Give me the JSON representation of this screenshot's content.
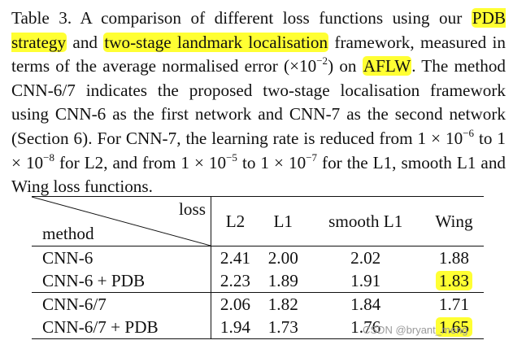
{
  "caption": {
    "p1": "Table 3. A comparison of different loss functions using our ",
    "hl1": "PDB strategy",
    "p2": " and ",
    "hl2": "two-stage landmark localisation",
    "p3": " framework, measured in terms of the average normalised error (×10",
    "exp1": "−2",
    "p4": ") on ",
    "hl3": "AFLW",
    "p5": ". The method CNN-6/7 indicates the proposed two-stage localisation framework using CNN-6 as the first network and CNN-7 as the second network (Section 6). For CNN-7, the learning rate is reduced from 1 × 10",
    "exp2": "−6",
    "p6": " to 1 × 10",
    "exp3": "−8",
    "p7": " for L2, and from 1 × 10",
    "exp4": "−5",
    "p8": " to 1 × 10",
    "exp5": "−7",
    "p9": " for the L1, smooth L1 and Wing loss functions."
  },
  "table": {
    "corner_top": "loss",
    "corner_bottom": "method",
    "columns": [
      "L2",
      "L1",
      "smooth L1",
      "Wing"
    ],
    "rows": [
      {
        "method": "CNN-6",
        "values": [
          "2.41",
          "2.00",
          "2.02",
          "1.88"
        ]
      },
      {
        "method": "CNN-6 + PDB",
        "values": [
          "2.23",
          "1.89",
          "1.91",
          "1.83"
        ]
      },
      {
        "method": "CNN-6/7",
        "values": [
          "2.06",
          "1.82",
          "1.84",
          "1.71"
        ]
      },
      {
        "method": "CNN-6/7 + PDB",
        "values": [
          "1.94",
          "1.73",
          "1.76",
          "1.65"
        ]
      }
    ]
  },
  "highlight_color": "#ffff33",
  "watermark": "CSDN @bryant_meng"
}
